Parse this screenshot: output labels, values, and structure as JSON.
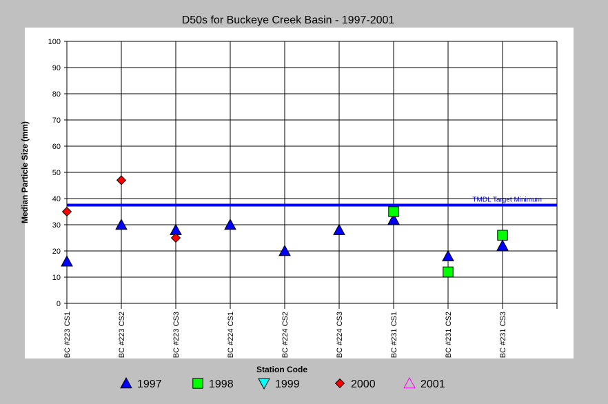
{
  "chart_data": {
    "type": "scatter",
    "title": "D50s for Buckeye Creek Basin - 1997-2001",
    "xlabel": "Station Code",
    "ylabel": "Median Particle Size (mm)",
    "ylim": [
      0,
      100
    ],
    "yticks": [
      0,
      10,
      20,
      30,
      40,
      50,
      60,
      70,
      80,
      90,
      100
    ],
    "grid": true,
    "legend_position": "bottom",
    "categories": [
      "BC #223 CS1",
      "BC #223 CS2",
      "BC #223 CS3",
      "BC #224 CS1",
      "BC #224 CS2",
      "BC #224 CS3",
      "BC #231 CS1",
      "BC #231 CS2",
      "BC #231 CS3"
    ],
    "series": [
      {
        "name": "1997",
        "marker": "triangle-up",
        "fill": "#0000ff",
        "stroke": "#000000",
        "values": [
          16,
          30,
          28,
          30,
          20,
          28,
          32,
          18,
          22
        ]
      },
      {
        "name": "1998",
        "marker": "square",
        "fill": "#00ff00",
        "stroke": "#000000",
        "values": [
          null,
          null,
          null,
          null,
          null,
          null,
          35,
          12,
          26
        ]
      },
      {
        "name": "1999",
        "marker": "triangle-down",
        "fill": "#00ffff",
        "stroke": "#000000",
        "values": [
          null,
          null,
          null,
          null,
          null,
          null,
          null,
          null,
          null
        ]
      },
      {
        "name": "2000",
        "marker": "diamond",
        "fill": "#ff0000",
        "stroke": "#000000",
        "values": [
          35,
          47,
          25,
          null,
          null,
          null,
          null,
          null,
          null
        ]
      },
      {
        "name": "2001",
        "marker": "triangle-up-open",
        "fill": "none",
        "stroke": "#ff00ff",
        "values": [
          null,
          null,
          null,
          null,
          null,
          null,
          null,
          null,
          null
        ]
      }
    ],
    "reference_line": {
      "label": "TMDL Target Minimum",
      "value": 37.5,
      "color": "#0000ff"
    }
  }
}
